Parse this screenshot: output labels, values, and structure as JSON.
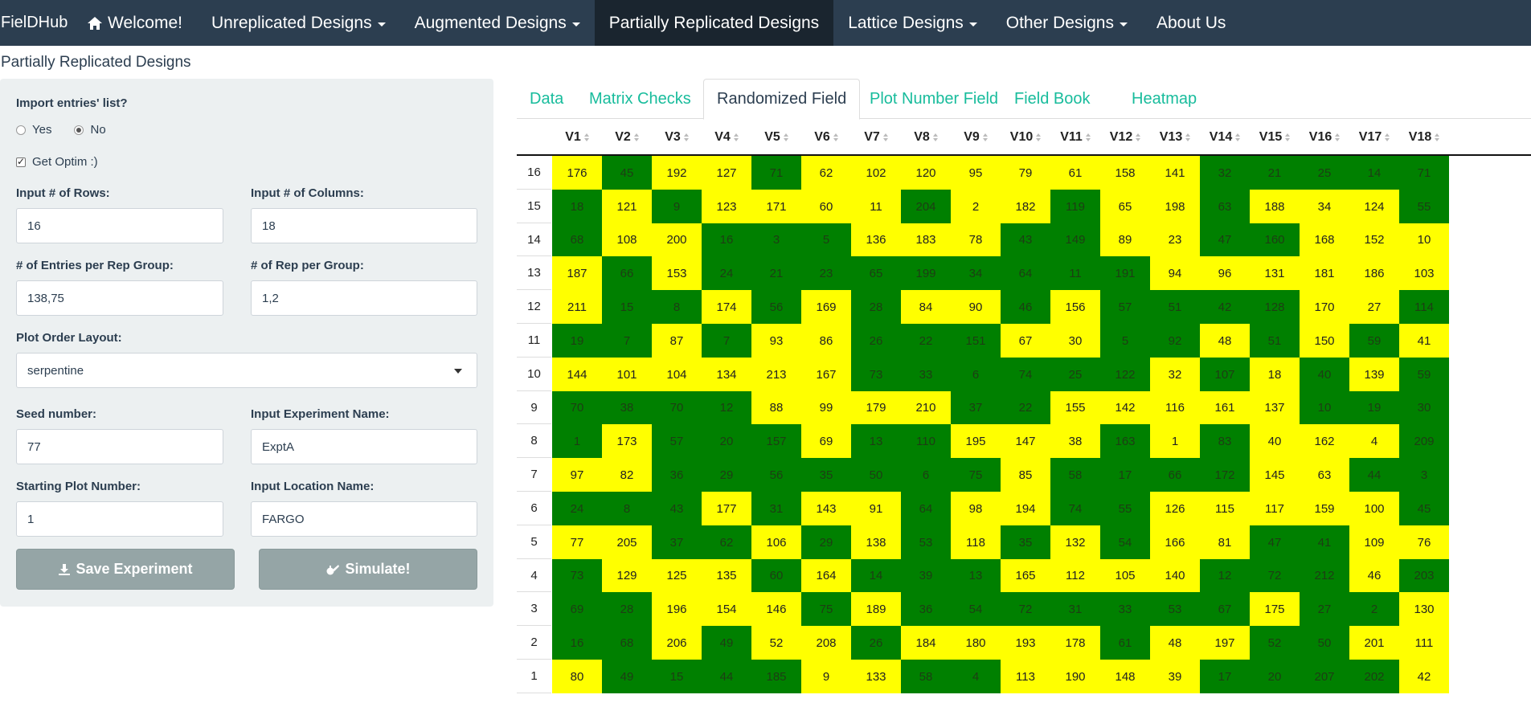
{
  "navbar": {
    "brand": "FielDHub",
    "items": [
      {
        "label": "Welcome!",
        "icon": "home-icon",
        "caret": false,
        "active": false
      },
      {
        "label": "Unreplicated Designs",
        "caret": true,
        "active": false
      },
      {
        "label": "Augmented Designs",
        "caret": true,
        "active": false
      },
      {
        "label": "Partially Replicated Designs",
        "caret": false,
        "active": true
      },
      {
        "label": "Lattice Designs",
        "caret": true,
        "active": false
      },
      {
        "label": "Other Designs",
        "caret": true,
        "active": false
      },
      {
        "label": "About Us",
        "caret": false,
        "active": false
      }
    ]
  },
  "page_title": "Partially Replicated Designs",
  "form": {
    "import_label": "Import entries' list?",
    "yes_label": "Yes",
    "no_label": "No",
    "import_selected": "No",
    "optim_label": "Get Optim :)",
    "optim_checked": true,
    "rows_label": "Input # of Rows:",
    "rows_value": "16",
    "cols_label": "Input # of Columns:",
    "cols_value": "18",
    "entries_label": "# of Entries per Rep Group:",
    "entries_value": "138,75",
    "reps_label": "# of Rep per Group:",
    "reps_value": "1,2",
    "layout_label": "Plot Order Layout:",
    "layout_value": "serpentine",
    "seed_label": "Seed number:",
    "seed_value": "77",
    "expt_label": "Input Experiment Name:",
    "expt_value": "ExptA",
    "start_label": "Starting Plot Number:",
    "start_value": "1",
    "location_label": "Input Location Name:",
    "location_value": "FARGO",
    "save_button": "Save Experiment",
    "simulate_button": "Simulate!"
  },
  "tabs": [
    {
      "label": "Data",
      "active": false
    },
    {
      "label": "Matrix Checks",
      "active": false
    },
    {
      "label": "Randomized Field",
      "active": true
    },
    {
      "label": "Plot Number Field",
      "active": false
    },
    {
      "label": "Field Book",
      "active": false
    },
    {
      "label": "Heatmap",
      "active": false
    }
  ],
  "colors": {
    "navbar": "#2c3e50",
    "yellow": "#ffff00",
    "green": "#008000",
    "tab_link": "#18bc9c"
  },
  "field": {
    "columns": [
      "V1",
      "V2",
      "V3",
      "V4",
      "V5",
      "V6",
      "V7",
      "V8",
      "V9",
      "V10",
      "V11",
      "V12",
      "V13",
      "V14",
      "V15",
      "V16",
      "V17",
      "V18"
    ],
    "rows": [
      {
        "label": "16",
        "values": [
          "176",
          "45",
          "192",
          "127",
          "71",
          "62",
          "102",
          "120",
          "95",
          "79",
          "61",
          "158",
          "141",
          "32",
          "21",
          "25",
          "14",
          "71"
        ],
        "colors": "ygyygyyyyyyyyggggg"
      },
      {
        "label": "15",
        "values": [
          "18",
          "121",
          "9",
          "123",
          "171",
          "60",
          "11",
          "204",
          "2",
          "182",
          "119",
          "65",
          "198",
          "63",
          "188",
          "34",
          "124",
          "55"
        ],
        "colors": "gygyyyygyygyygyyyg"
      },
      {
        "label": "14",
        "values": [
          "68",
          "108",
          "200",
          "16",
          "3",
          "5",
          "136",
          "183",
          "78",
          "43",
          "149",
          "89",
          "23",
          "47",
          "160",
          "168",
          "152",
          "10"
        ],
        "colors": "gyygggyyyggyyggyyyg"
      },
      {
        "label": "13",
        "values": [
          "187",
          "66",
          "153",
          "24",
          "21",
          "23",
          "65",
          "199",
          "34",
          "64",
          "11",
          "191",
          "94",
          "96",
          "131",
          "181",
          "186",
          "103"
        ],
        "colors": "ygygggggggggyyyyyyy"
      },
      {
        "label": "12",
        "values": [
          "211",
          "15",
          "8",
          "174",
          "56",
          "169",
          "28",
          "84",
          "90",
          "46",
          "156",
          "57",
          "51",
          "42",
          "128",
          "170",
          "27",
          "114"
        ],
        "colors": "yggygygyygyggggyygy"
      },
      {
        "label": "11",
        "values": [
          "19",
          "7",
          "87",
          "7",
          "93",
          "86",
          "26",
          "22",
          "151",
          "67",
          "30",
          "5",
          "92",
          "48",
          "51",
          "150",
          "59",
          "41"
        ],
        "colors": "ggygyygggyyggygygygg"
      },
      {
        "label": "10",
        "values": [
          "144",
          "101",
          "104",
          "134",
          "213",
          "167",
          "73",
          "33",
          "6",
          "74",
          "25",
          "122",
          "32",
          "107",
          "18",
          "40",
          "139",
          "59"
        ],
        "colors": "yyyyyyggggggygygygyg"
      },
      {
        "label": "9",
        "values": [
          "70",
          "38",
          "70",
          "12",
          "88",
          "99",
          "179",
          "210",
          "37",
          "22",
          "155",
          "142",
          "116",
          "161",
          "137",
          "10",
          "19",
          "30"
        ],
        "colors": "ggggyyyyggyyyyyggg"
      },
      {
        "label": "8",
        "values": [
          "1",
          "173",
          "57",
          "20",
          "157",
          "69",
          "13",
          "110",
          "195",
          "147",
          "38",
          "163",
          "1",
          "83",
          "40",
          "162",
          "4",
          "209"
        ],
        "colors": "gygggyggyyygygyyyg"
      },
      {
        "label": "7",
        "values": [
          "97",
          "82",
          "36",
          "29",
          "56",
          "35",
          "50",
          "6",
          "75",
          "85",
          "58",
          "17",
          "66",
          "172",
          "145",
          "63",
          "44",
          "3"
        ],
        "colors": "yygggggggyggggyyggg"
      },
      {
        "label": "6",
        "values": [
          "24",
          "8",
          "43",
          "177",
          "31",
          "143",
          "91",
          "64",
          "98",
          "194",
          "74",
          "55",
          "126",
          "115",
          "117",
          "159",
          "100",
          "45"
        ],
        "colors": "gggygyygyyggyyyyyg"
      },
      {
        "label": "5",
        "values": [
          "77",
          "205",
          "37",
          "62",
          "106",
          "29",
          "138",
          "53",
          "118",
          "35",
          "132",
          "54",
          "166",
          "81",
          "47",
          "41",
          "109",
          "76"
        ],
        "colors": "yyggygygygygyyggyy"
      },
      {
        "label": "4",
        "values": [
          "73",
          "129",
          "125",
          "135",
          "60",
          "164",
          "14",
          "39",
          "13",
          "165",
          "112",
          "105",
          "140",
          "12",
          "72",
          "212",
          "46",
          "203"
        ],
        "colors": "gyyygygggyyyygggyggy"
      },
      {
        "label": "3",
        "values": [
          "69",
          "28",
          "196",
          "154",
          "146",
          "75",
          "189",
          "36",
          "54",
          "72",
          "31",
          "33",
          "53",
          "67",
          "175",
          "27",
          "2",
          "130"
        ],
        "colors": "ggyyygygggggggyggy"
      },
      {
        "label": "2",
        "values": [
          "16",
          "68",
          "206",
          "49",
          "52",
          "208",
          "26",
          "184",
          "180",
          "193",
          "178",
          "61",
          "48",
          "197",
          "52",
          "50",
          "201",
          "111"
        ],
        "colors": "ggygyygyyyygyyggyy"
      },
      {
        "label": "1",
        "values": [
          "80",
          "49",
          "15",
          "44",
          "185",
          "9",
          "133",
          "58",
          "4",
          "113",
          "190",
          "148",
          "39",
          "17",
          "20",
          "207",
          "202",
          "42"
        ],
        "colors": "yggggyyggyyyyggggyyg"
      }
    ]
  }
}
